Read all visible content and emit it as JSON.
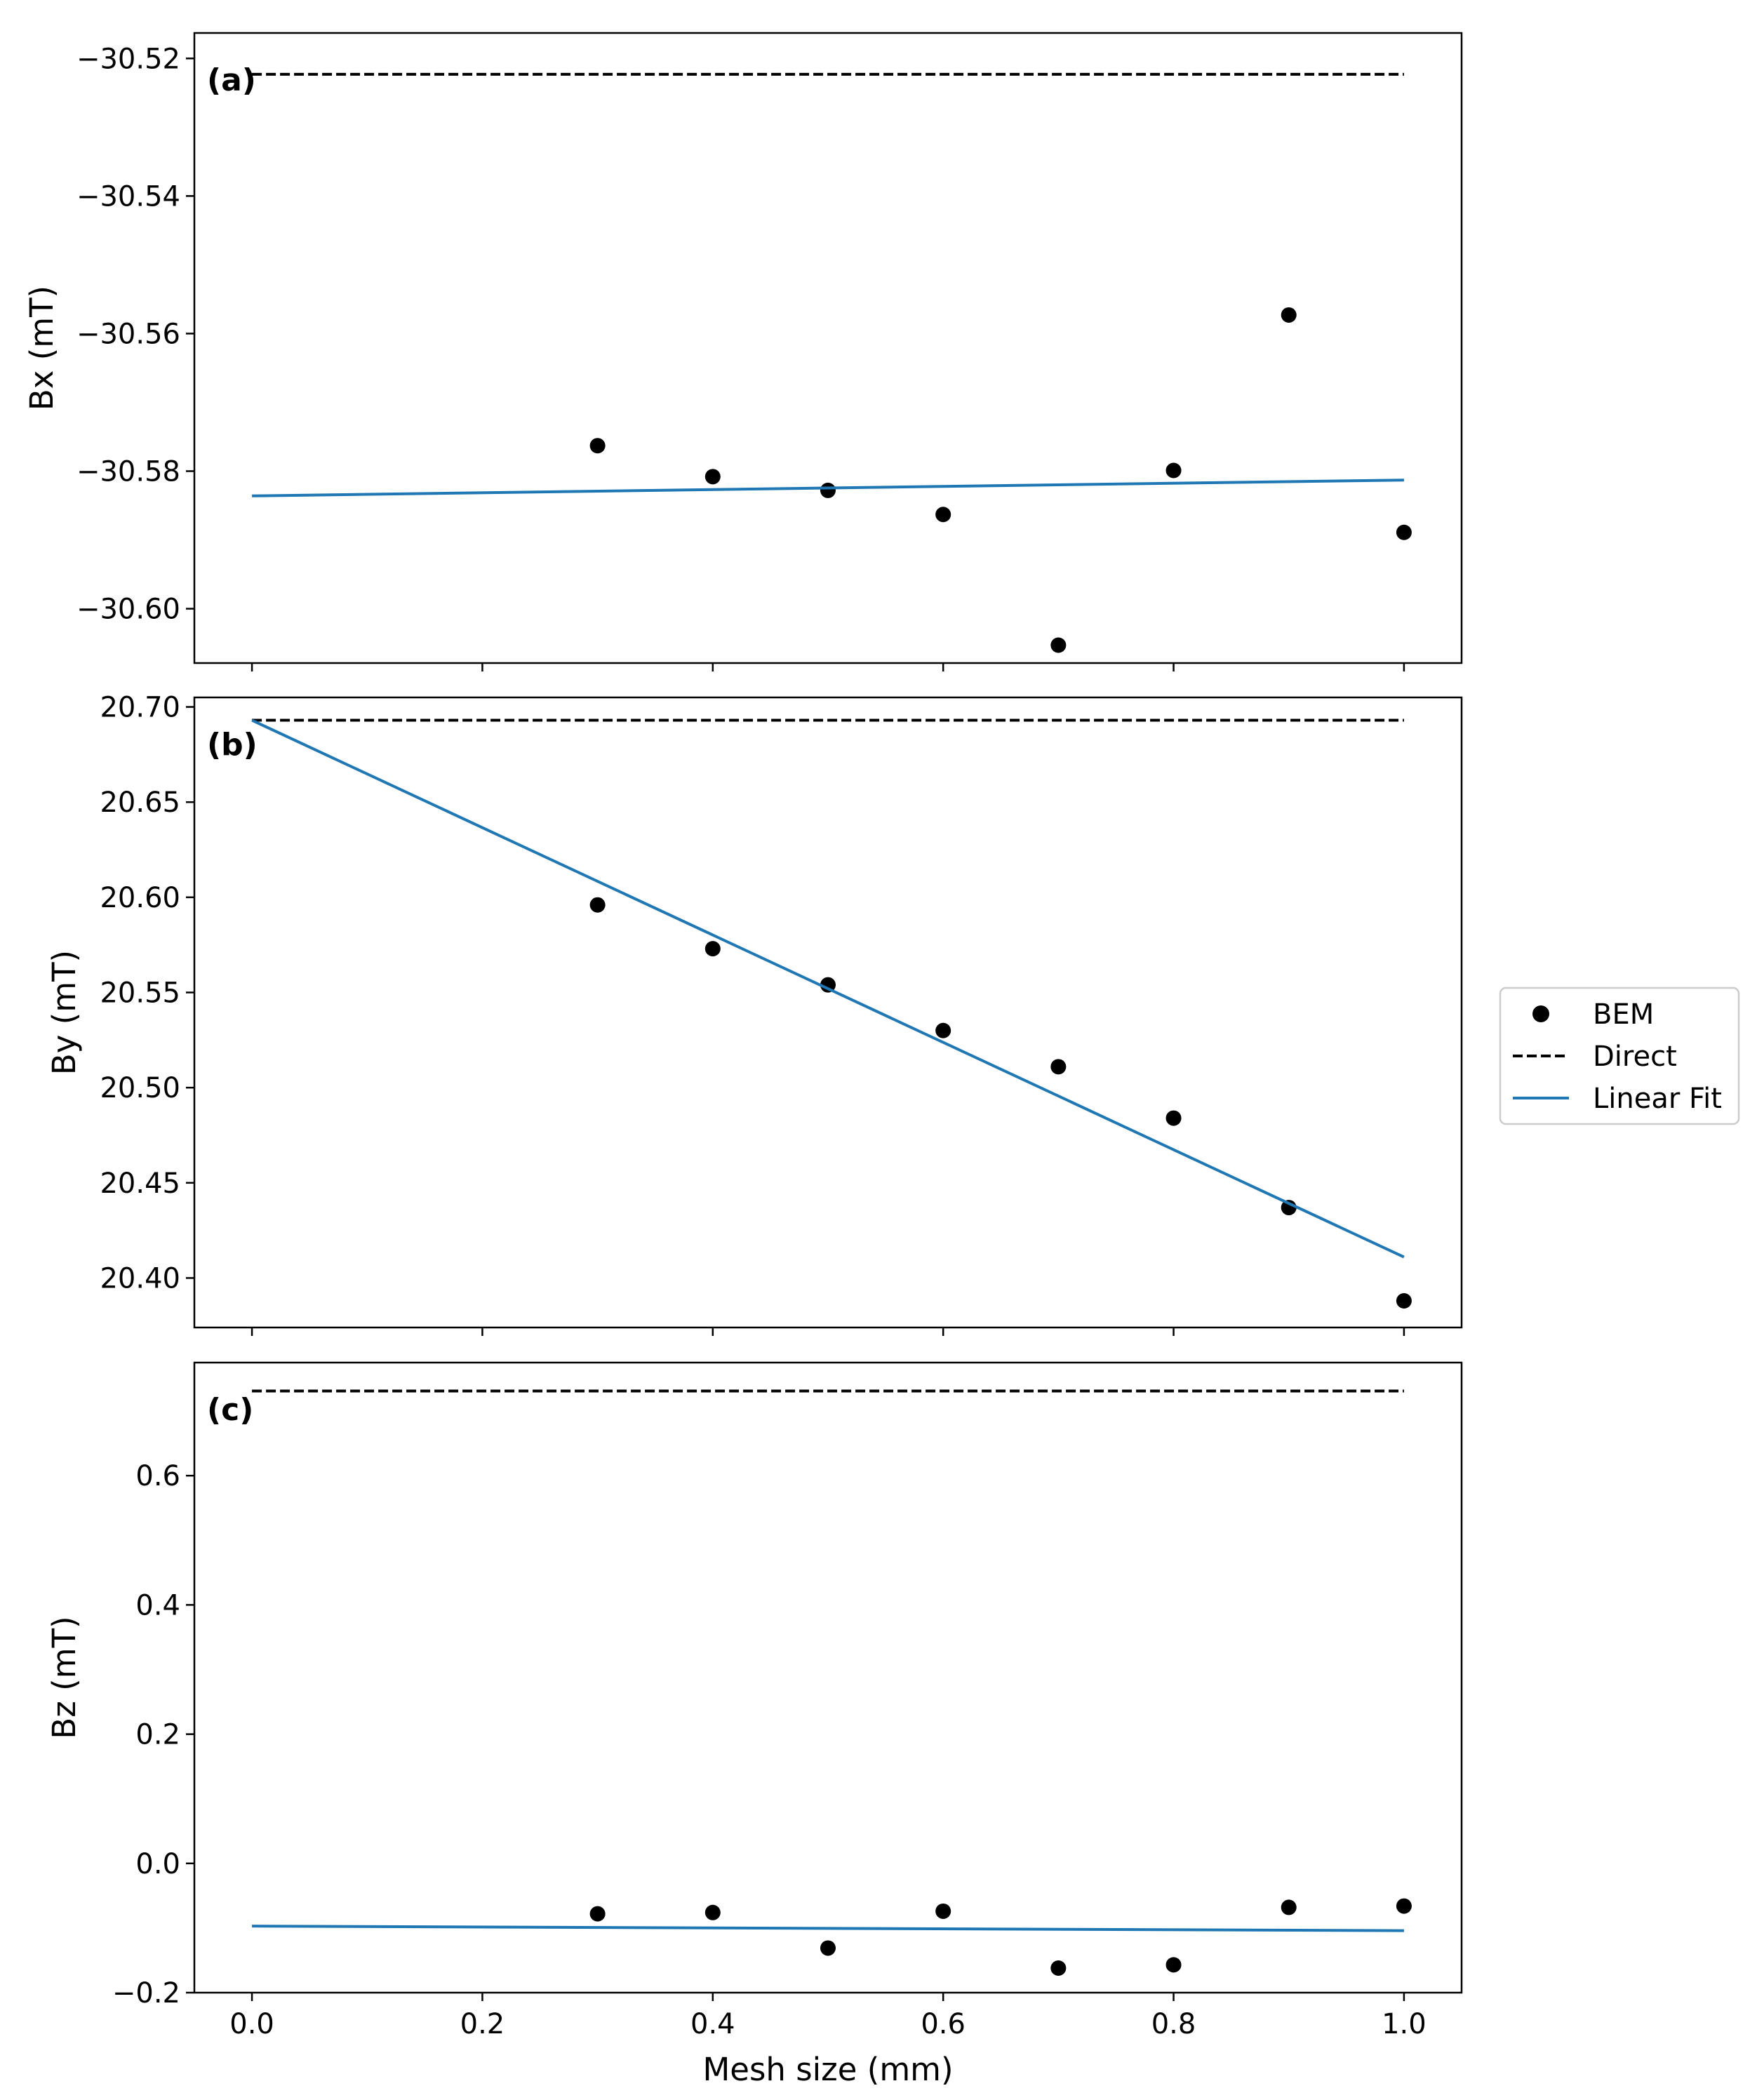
{
  "chart_data": [
    {
      "type": "scatter",
      "panel_label": "(a)",
      "ylabel": "Bx (mT)",
      "xlabel": "",
      "xlim": [
        -0.05,
        1.05
      ],
      "ylim": [
        -30.6079,
        -30.5163
      ],
      "xticks": [
        0.0,
        0.2,
        0.4,
        0.6,
        0.8,
        1.0
      ],
      "xtick_labels_visible": false,
      "yticks": [
        -30.52,
        -30.54,
        -30.56,
        -30.58,
        -30.6
      ],
      "ytick_labels": [
        "−30.52",
        "−30.54",
        "−30.56",
        "−30.58",
        "−30.60"
      ],
      "series": [
        {
          "name": "BEM",
          "kind": "points",
          "color": "#000000",
          "x": [
            0.3,
            0.4,
            0.5,
            0.6,
            0.7,
            0.8,
            0.9,
            1.0
          ],
          "y": [
            -30.5763,
            -30.5808,
            -30.5828,
            -30.5863,
            -30.6053,
            -30.5799,
            -30.5573,
            -30.5889
          ]
        },
        {
          "name": "Direct",
          "kind": "dashed-line",
          "color": "#000000",
          "x": [
            0.0,
            1.0
          ],
          "y": [
            -30.5223,
            -30.5223
          ]
        },
        {
          "name": "Linear Fit",
          "kind": "line",
          "color": "#1f77b4",
          "x": [
            0.0,
            1.0
          ],
          "y": [
            -30.5836,
            -30.5813
          ]
        }
      ]
    },
    {
      "type": "scatter",
      "panel_label": "(b)",
      "ylabel": "By (mT)",
      "xlabel": "",
      "xlim": [
        -0.05,
        1.05
      ],
      "ylim": [
        20.374,
        20.705
      ],
      "xticks": [
        0.0,
        0.2,
        0.4,
        0.6,
        0.8,
        1.0
      ],
      "xtick_labels_visible": false,
      "yticks": [
        20.7,
        20.65,
        20.6,
        20.55,
        20.5,
        20.45,
        20.4
      ],
      "ytick_labels": [
        "20.70",
        "20.65",
        "20.60",
        "20.55",
        "20.50",
        "20.45",
        "20.40"
      ],
      "series": [
        {
          "name": "BEM",
          "kind": "points",
          "color": "#000000",
          "x": [
            0.3,
            0.4,
            0.5,
            0.6,
            0.7,
            0.8,
            0.9,
            1.0
          ],
          "y": [
            20.596,
            20.573,
            20.554,
            20.53,
            20.511,
            20.484,
            20.437,
            20.388
          ]
        },
        {
          "name": "Direct",
          "kind": "dashed-line",
          "color": "#000000",
          "x": [
            0.0,
            1.0
          ],
          "y": [
            20.693,
            20.693
          ]
        },
        {
          "name": "Linear Fit",
          "kind": "line",
          "color": "#1f77b4",
          "x": [
            0.0,
            1.0
          ],
          "y": [
            20.693,
            20.411
          ]
        }
      ]
    },
    {
      "type": "scatter",
      "panel_label": "(c)",
      "ylabel": "Bz (mT)",
      "xlabel": "Mesh size (mm)",
      "xlim": [
        -0.05,
        1.05
      ],
      "ylim": [
        -0.2,
        0.775
      ],
      "xticks": [
        0.0,
        0.2,
        0.4,
        0.6,
        0.8,
        1.0
      ],
      "xtick_labels_visible": true,
      "xtick_labels": [
        "0.0",
        "0.2",
        "0.4",
        "0.6",
        "0.8",
        "1.0"
      ],
      "yticks": [
        0.6,
        0.4,
        0.2,
        0.0,
        -0.2
      ],
      "ytick_labels": [
        "0.6",
        "0.4",
        "0.2",
        "0.0",
        "−0.2"
      ],
      "series": [
        {
          "name": "BEM",
          "kind": "points",
          "color": "#000000",
          "x": [
            0.3,
            0.4,
            0.5,
            0.6,
            0.7,
            0.8,
            0.9,
            1.0
          ],
          "y": [
            -0.078,
            -0.076,
            -0.131,
            -0.074,
            -0.162,
            -0.157,
            -0.068,
            -0.066
          ]
        },
        {
          "name": "Direct",
          "kind": "dashed-line",
          "color": "#000000",
          "x": [
            0.0,
            1.0
          ],
          "y": [
            0.731,
            0.731
          ]
        },
        {
          "name": "Linear Fit",
          "kind": "line",
          "color": "#1f77b4",
          "x": [
            0.0,
            1.0
          ],
          "y": [
            -0.097,
            -0.104
          ]
        }
      ]
    }
  ],
  "legend": {
    "placement": "right-center",
    "entries": [
      {
        "label": "BEM",
        "marker": "dot",
        "color": "#000000"
      },
      {
        "label": "Direct",
        "marker": "dashed",
        "color": "#000000"
      },
      {
        "label": "Linear Fit",
        "marker": "line",
        "color": "#1f77b4"
      }
    ]
  }
}
